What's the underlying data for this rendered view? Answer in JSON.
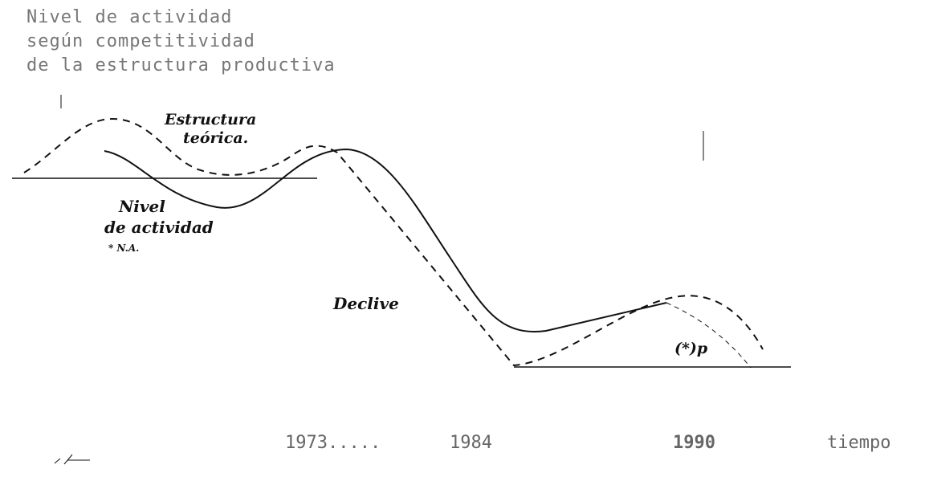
{
  "title": {
    "lines": [
      "Nivel de actividad",
      "según competitividad",
      "de la estructura productiva"
    ]
  },
  "annotations": {
    "theoretical": [
      "Estructura",
      "teórica."
    ],
    "activity": [
      "Nivel",
      "de actividad",
      "* N.A."
    ],
    "decline": "Declive",
    "p": "(*)p"
  },
  "axis": {
    "labels": [
      "1973.....",
      "1984",
      "1990"
    ],
    "name": "tiempo"
  }
}
